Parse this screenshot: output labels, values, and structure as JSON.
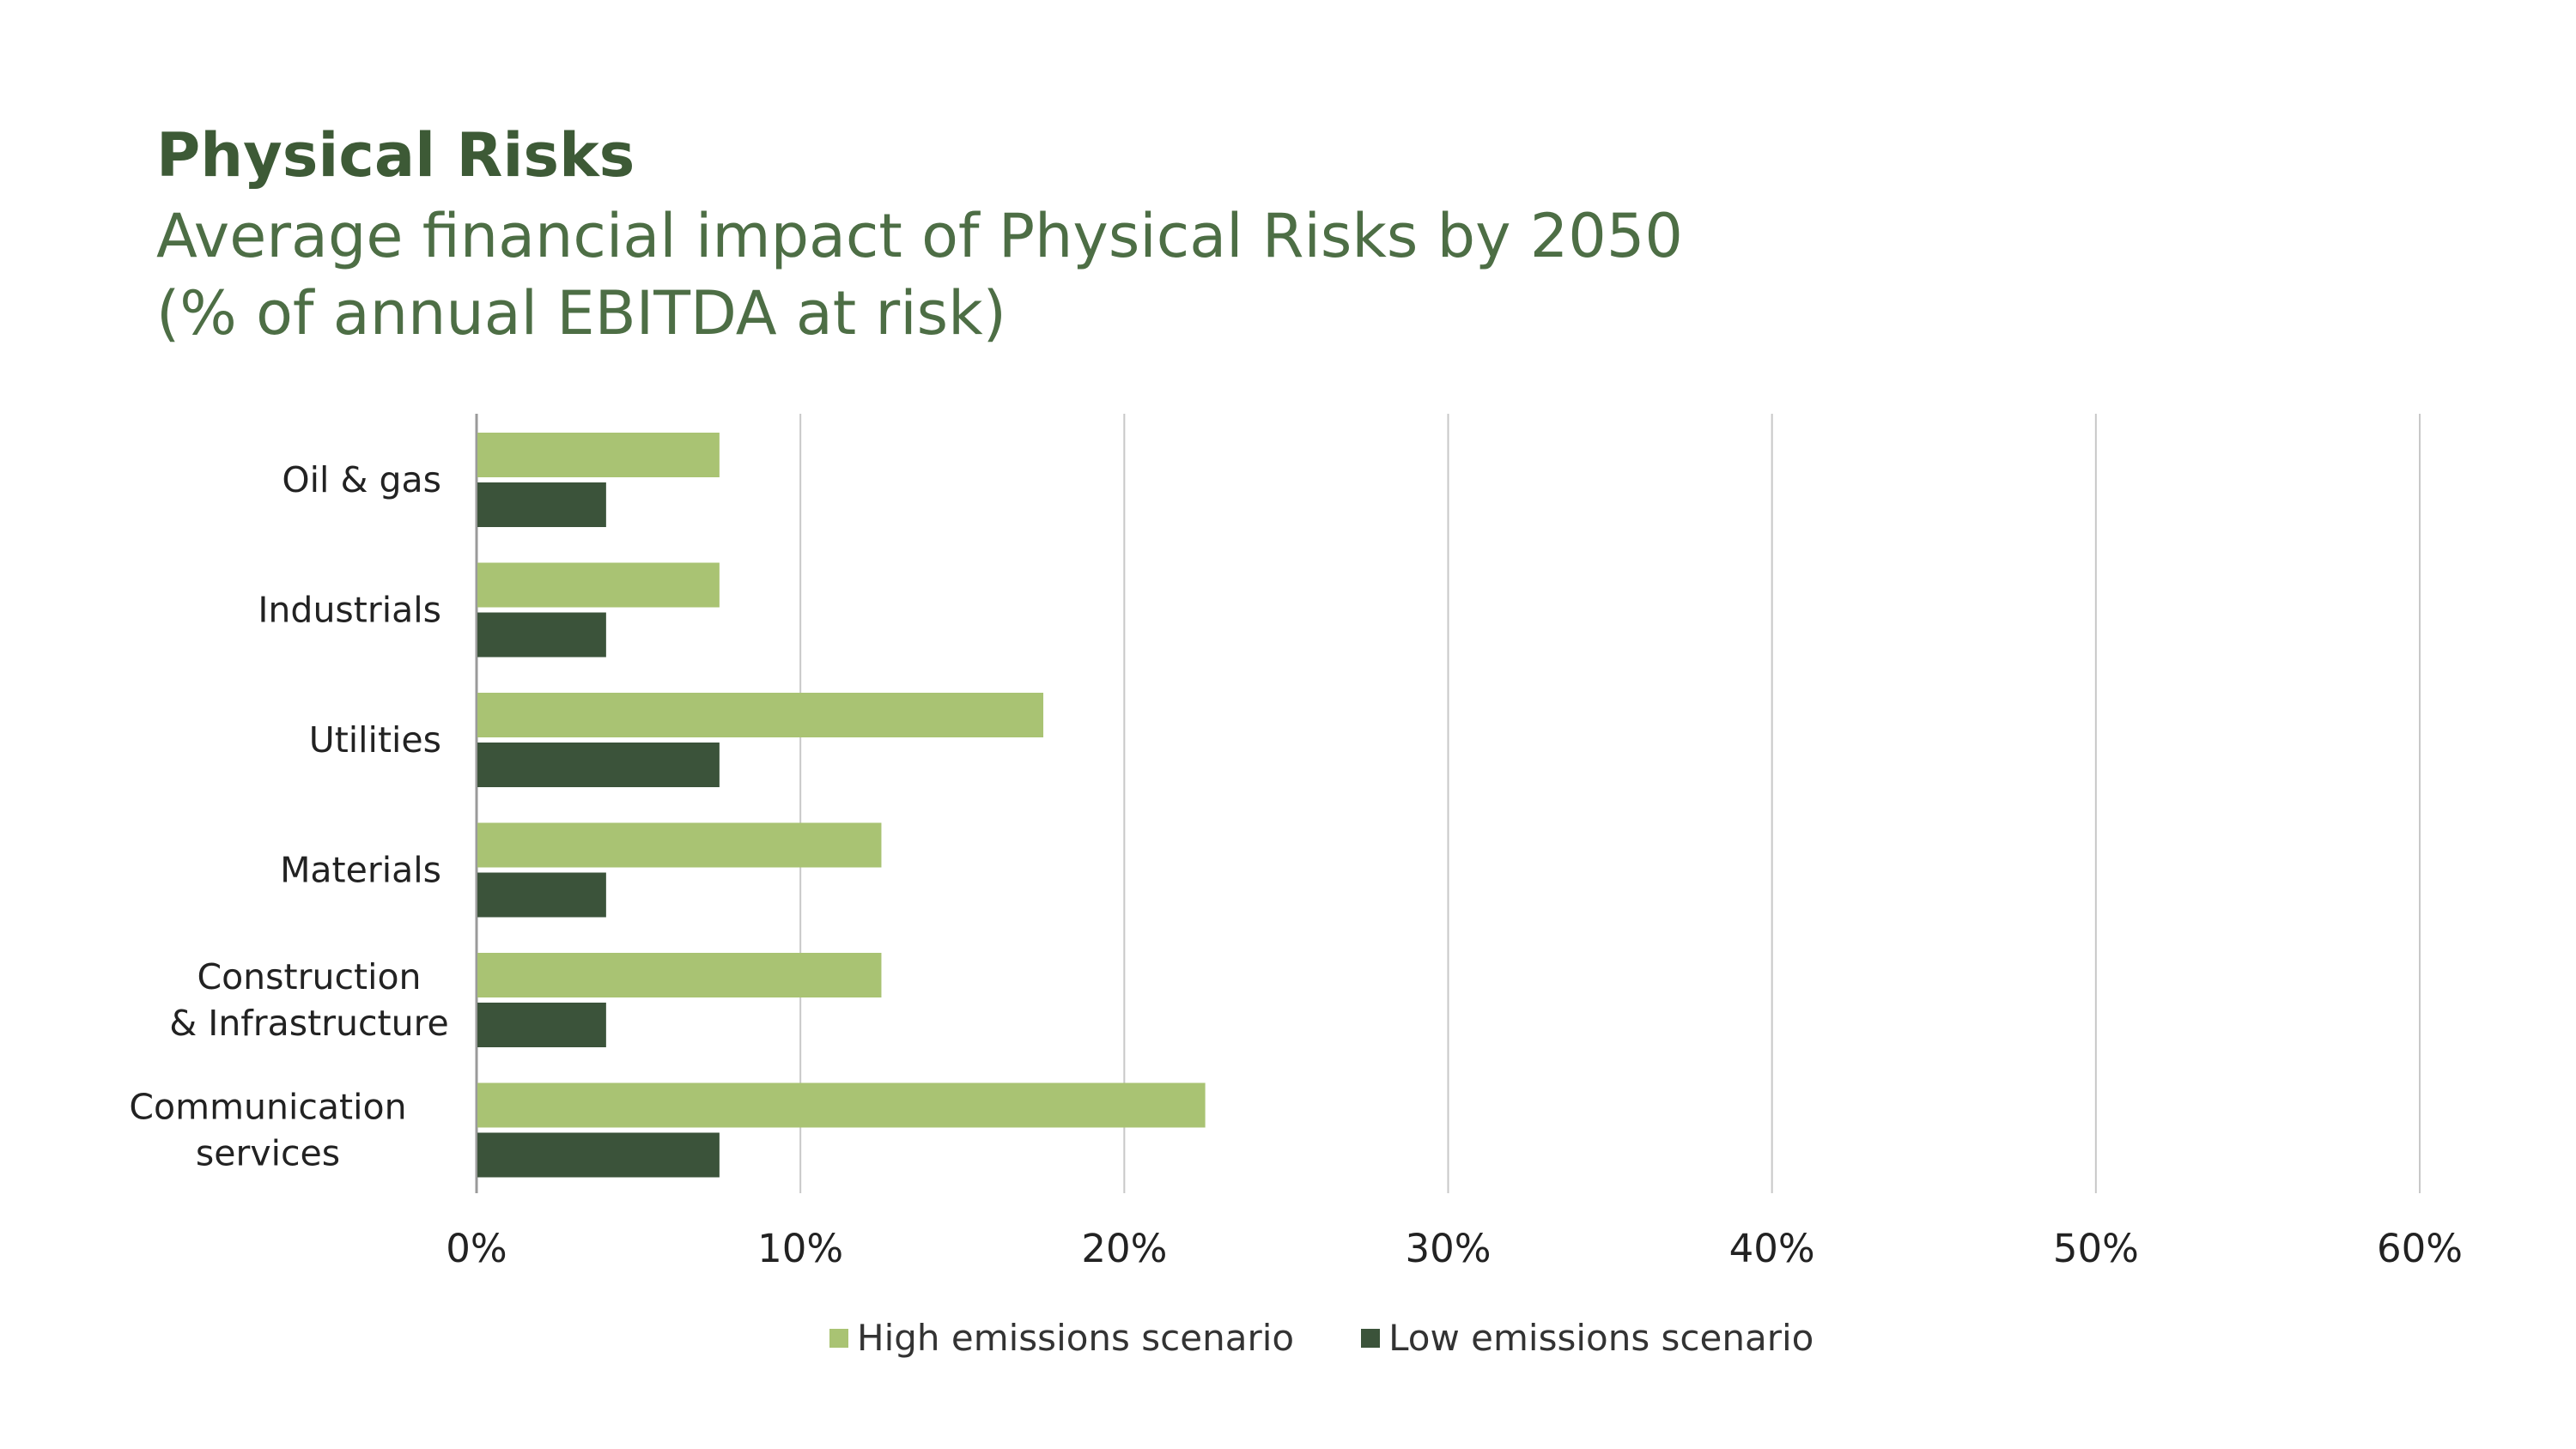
{
  "chart_data": {
    "type": "bar",
    "orientation": "horizontal",
    "title": "Physical Risks",
    "subtitle": [
      "Average financial impact of Physical Risks by 2050",
      "(% of annual EBITDA at risk)"
    ],
    "categories": [
      [
        "Oil & gas"
      ],
      [
        "Industrials"
      ],
      [
        "Utilities"
      ],
      [
        "Materials"
      ],
      [
        "Construction",
        "& Infrastructure"
      ],
      [
        "Communication",
        "services"
      ]
    ],
    "series": [
      {
        "name": "High emissions scenario",
        "color": "#a9c373",
        "values": [
          7.5,
          7.5,
          17.5,
          12.5,
          12.5,
          22.5
        ]
      },
      {
        "name": "Low emissions scenario",
        "color": "#3b533a",
        "values": [
          4,
          4,
          7.5,
          4,
          4,
          7.5
        ]
      }
    ],
    "xlim": [
      0,
      60
    ],
    "xticks": [
      "0%",
      "10%",
      "20%",
      "30%",
      "40%",
      "50%",
      "60%"
    ],
    "grid": "vertical",
    "legend": "bottom-center"
  }
}
